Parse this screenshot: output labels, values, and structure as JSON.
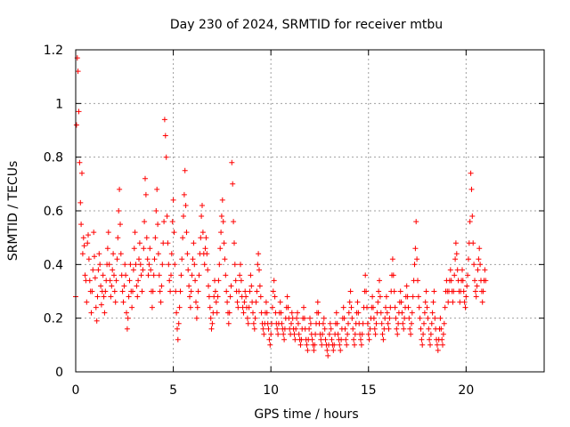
{
  "chart_data": {
    "type": "scatter",
    "title": "Day 230 of 2024, SRMTID for receiver mtbu",
    "xlabel": "GPS time / hours",
    "ylabel": "SRMTID / TECUs",
    "xlim": [
      0,
      24
    ],
    "ylim": [
      0,
      1.2
    ],
    "x_ticks": [
      0,
      5,
      10,
      15,
      20
    ],
    "x_tick_labels": [
      "0",
      "5",
      "10",
      "15",
      "20"
    ],
    "y_ticks": [
      0,
      0.2,
      0.4,
      0.6,
      0.8,
      1.0,
      1.2
    ],
    "y_tick_labels": [
      "0",
      "0.2",
      "0.4",
      "0.6",
      "0.8",
      "1",
      "1.2"
    ],
    "grid": true,
    "marker": "+",
    "series": [
      {
        "name": "SRMTID",
        "color": "#ff0000",
        "x_start": 0.0,
        "x_step": 0.04,
        "values": [
          0.28,
          0.92,
          1.17,
          1.12,
          0.97,
          0.78,
          0.63,
          0.55,
          0.74,
          0.44,
          0.5,
          0.47,
          0.36,
          0.34,
          0.26,
          0.48,
          0.51,
          0.42,
          0.34,
          0.3,
          0.22,
          0.3,
          0.38,
          0.52,
          0.43,
          0.35,
          0.24,
          0.19,
          0.28,
          0.38,
          0.44,
          0.4,
          0.32,
          0.25,
          0.3,
          0.36,
          0.28,
          0.22,
          0.3,
          0.34,
          0.4,
          0.46,
          0.52,
          0.4,
          0.34,
          0.28,
          0.32,
          0.38,
          0.44,
          0.36,
          0.3,
          0.26,
          0.34,
          0.42,
          0.5,
          0.6,
          0.68,
          0.55,
          0.44,
          0.36,
          0.3,
          0.26,
          0.32,
          0.4,
          0.36,
          0.22,
          0.16,
          0.2,
          0.28,
          0.34,
          0.4,
          0.3,
          0.24,
          0.3,
          0.38,
          0.46,
          0.52,
          0.4,
          0.32,
          0.28,
          0.34,
          0.42,
          0.48,
          0.4,
          0.36,
          0.3,
          0.38,
          0.46,
          0.56,
          0.72,
          0.66,
          0.5,
          0.42,
          0.36,
          0.4,
          0.46,
          0.38,
          0.3,
          0.24,
          0.3,
          0.36,
          0.42,
          0.5,
          0.6,
          0.68,
          0.55,
          0.44,
          0.36,
          0.3,
          0.26,
          0.32,
          0.4,
          0.48,
          0.56,
          0.94,
          0.88,
          0.8,
          0.58,
          0.48,
          0.4,
          0.34,
          0.3,
          0.36,
          0.44,
          0.56,
          0.64,
          0.52,
          0.4,
          0.3,
          0.22,
          0.16,
          0.12,
          0.18,
          0.24,
          0.3,
          0.36,
          0.42,
          0.5,
          0.58,
          0.66,
          0.75,
          0.62,
          0.52,
          0.44,
          0.38,
          0.32,
          0.28,
          0.24,
          0.3,
          0.36,
          0.42,
          0.48,
          0.4,
          0.34,
          0.26,
          0.2,
          0.24,
          0.3,
          0.36,
          0.44,
          0.5,
          0.58,
          0.62,
          0.52,
          0.44,
          0.4,
          0.46,
          0.5,
          0.44,
          0.38,
          0.32,
          0.28,
          0.24,
          0.2,
          0.16,
          0.18,
          0.22,
          0.28,
          0.34,
          0.3,
          0.26,
          0.22,
          0.28,
          0.34,
          0.4,
          0.46,
          0.52,
          0.58,
          0.64,
          0.56,
          0.48,
          0.42,
          0.36,
          0.3,
          0.26,
          0.22,
          0.18,
          0.22,
          0.28,
          0.32,
          0.78,
          0.7,
          0.56,
          0.48,
          0.4,
          0.34,
          0.3,
          0.26,
          0.24,
          0.3,
          0.36,
          0.4,
          0.34,
          0.28,
          0.24,
          0.22,
          0.26,
          0.3,
          0.28,
          0.24,
          0.2,
          0.18,
          0.24,
          0.3,
          0.36,
          0.32,
          0.26,
          0.22,
          0.18,
          0.16,
          0.2,
          0.26,
          0.3,
          0.4,
          0.44,
          0.38,
          0.32,
          0.28,
          0.22,
          0.18,
          0.16,
          0.14,
          0.18,
          0.22,
          0.26,
          0.22,
          0.18,
          0.16,
          0.12,
          0.1,
          0.14,
          0.18,
          0.24,
          0.3,
          0.34,
          0.28,
          0.22,
          0.18,
          0.16,
          0.14,
          0.18,
          0.22,
          0.26,
          0.22,
          0.18,
          0.16,
          0.14,
          0.12,
          0.16,
          0.2,
          0.24,
          0.28,
          0.24,
          0.2,
          0.16,
          0.14,
          0.18,
          0.22,
          0.2,
          0.16,
          0.14,
          0.12,
          0.16,
          0.2,
          0.22,
          0.18,
          0.14,
          0.12,
          0.1,
          0.12,
          0.16,
          0.2,
          0.24,
          0.2,
          0.16,
          0.12,
          0.1,
          0.08,
          0.12,
          0.16,
          0.2,
          0.18,
          0.14,
          0.12,
          0.1,
          0.08,
          0.1,
          0.14,
          0.18,
          0.22,
          0.26,
          0.22,
          0.18,
          0.14,
          0.12,
          0.1,
          0.14,
          0.18,
          0.2,
          0.16,
          0.12,
          0.1,
          0.08,
          0.06,
          0.1,
          0.14,
          0.18,
          0.16,
          0.12,
          0.1,
          0.08,
          0.1,
          0.14,
          0.18,
          0.22,
          0.18,
          0.14,
          0.12,
          0.1,
          0.08,
          0.12,
          0.16,
          0.2,
          0.24,
          0.2,
          0.16,
          0.12,
          0.1,
          0.14,
          0.18,
          0.22,
          0.26,
          0.3,
          0.24,
          0.2,
          0.16,
          0.12,
          0.1,
          0.14,
          0.18,
          0.22,
          0.26,
          0.22,
          0.18,
          0.14,
          0.12,
          0.1,
          0.14,
          0.18,
          0.24,
          0.3,
          0.36,
          0.3,
          0.24,
          0.18,
          0.14,
          0.12,
          0.16,
          0.2,
          0.24,
          0.28,
          0.24,
          0.2,
          0.16,
          0.14,
          0.18,
          0.22,
          0.26,
          0.3,
          0.34,
          0.28,
          0.22,
          0.18,
          0.14,
          0.12,
          0.16,
          0.2,
          0.24,
          0.28,
          0.22,
          0.18,
          0.16,
          0.2,
          0.24,
          0.3,
          0.36,
          0.42,
          0.36,
          0.3,
          0.24,
          0.2,
          0.16,
          0.14,
          0.18,
          0.22,
          0.26,
          0.3,
          0.26,
          0.22,
          0.18,
          0.16,
          0.2,
          0.24,
          0.28,
          0.32,
          0.28,
          0.24,
          0.2,
          0.16,
          0.14,
          0.18,
          0.22,
          0.28,
          0.34,
          0.4,
          0.46,
          0.56,
          0.42,
          0.34,
          0.28,
          0.24,
          0.2,
          0.16,
          0.12,
          0.1,
          0.14,
          0.18,
          0.22,
          0.26,
          0.3,
          0.24,
          0.2,
          0.16,
          0.12,
          0.1,
          0.14,
          0.18,
          0.22,
          0.26,
          0.3,
          0.2,
          0.16,
          0.12,
          0.1,
          0.08,
          0.12,
          0.16,
          0.2,
          0.16,
          0.12,
          0.1,
          0.14,
          0.18,
          0.24,
          0.3,
          0.34,
          0.3,
          0.26,
          0.3,
          0.34,
          0.38,
          0.34,
          0.3,
          0.26,
          0.3,
          0.36,
          0.42,
          0.48,
          0.44,
          0.38,
          0.34,
          0.3,
          0.26,
          0.3,
          0.34,
          0.38,
          0.34,
          0.3,
          0.26,
          0.24,
          0.28,
          0.32,
          0.36,
          0.42,
          0.48,
          0.56,
          0.74,
          0.68,
          0.58,
          0.48,
          0.4,
          0.34,
          0.3,
          0.28,
          0.32,
          0.38,
          0.42,
          0.46,
          0.4,
          0.34,
          0.3,
          0.26,
          0.3,
          0.34,
          0.38,
          0.34
        ]
      }
    ]
  }
}
